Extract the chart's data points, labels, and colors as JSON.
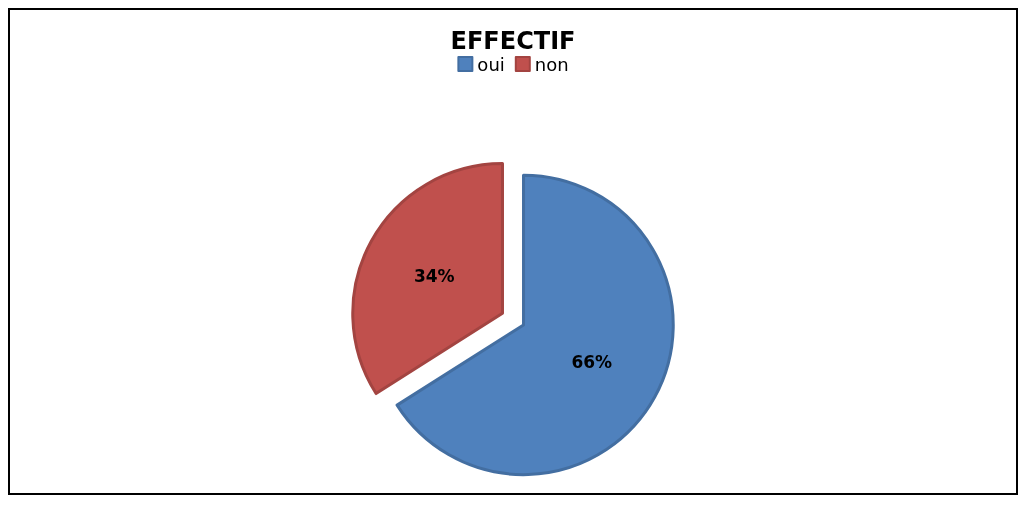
{
  "chart_data": {
    "type": "pie",
    "title": "EFFECTIF",
    "categories": [
      "oui",
      "non"
    ],
    "values": [
      66,
      34
    ],
    "colors": [
      "#4f81bd",
      "#c0504d"
    ],
    "value_labels": [
      "66%",
      "34%"
    ],
    "legend": "top"
  }
}
